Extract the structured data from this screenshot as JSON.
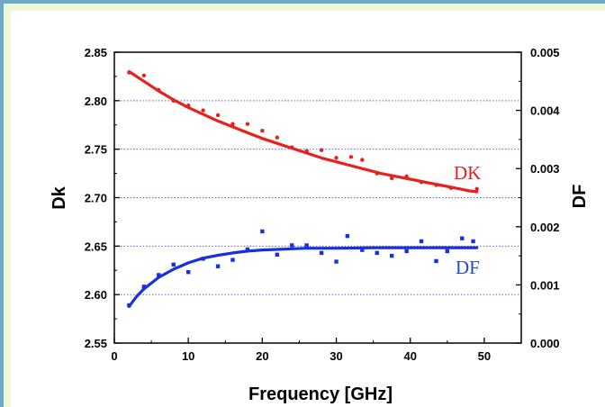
{
  "chart_data": {
    "type": "scatter",
    "xlabel": "Frequency [GHz]",
    "ylabel": "Dk",
    "y2label": "DF",
    "xlim": [
      0,
      55
    ],
    "ylim": [
      2.55,
      2.85
    ],
    "y2lim": [
      0,
      0.005
    ],
    "xticks": [
      "0",
      "10",
      "20",
      "30",
      "40",
      "50"
    ],
    "yticks": [
      "2.55",
      "2.60",
      "2.65",
      "2.70",
      "2.75",
      "2.80",
      "2.85"
    ],
    "y2ticks": [
      "0.000",
      "0.001",
      "0.002",
      "0.003",
      "0.004",
      "0.005"
    ],
    "grid": "horizontal dotted",
    "series": [
      {
        "name": "DK",
        "axis": "left",
        "color": "#e8201e",
        "points": [
          [
            2,
            2.829
          ],
          [
            4,
            2.826
          ],
          [
            6,
            2.811
          ],
          [
            8,
            2.8
          ],
          [
            10,
            2.795
          ],
          [
            12,
            2.79
          ],
          [
            14,
            2.785
          ],
          [
            16,
            2.776
          ],
          [
            18,
            2.776
          ],
          [
            20,
            2.769
          ],
          [
            22,
            2.762
          ],
          [
            24,
            2.752
          ],
          [
            26,
            2.748
          ],
          [
            28,
            2.749
          ],
          [
            30,
            2.741
          ],
          [
            32,
            2.742
          ],
          [
            33.5,
            2.739
          ],
          [
            35.5,
            2.725
          ],
          [
            37.5,
            2.72
          ],
          [
            39.5,
            2.722
          ],
          [
            41.5,
            2.716
          ],
          [
            43.5,
            2.713
          ],
          [
            45.5,
            2.71
          ],
          [
            49,
            2.709
          ]
        ],
        "fit": [
          [
            2,
            2.83
          ],
          [
            4,
            2.82
          ],
          [
            6,
            2.81
          ],
          [
            8,
            2.801
          ],
          [
            10,
            2.793
          ],
          [
            12,
            2.786
          ],
          [
            14,
            2.779
          ],
          [
            16,
            2.773
          ],
          [
            18,
            2.767
          ],
          [
            20,
            2.761
          ],
          [
            22,
            2.756
          ],
          [
            24,
            2.751
          ],
          [
            26,
            2.746
          ],
          [
            28,
            2.741
          ],
          [
            30,
            2.737
          ],
          [
            32,
            2.733
          ],
          [
            34,
            2.729
          ],
          [
            36,
            2.725
          ],
          [
            38,
            2.722
          ],
          [
            40,
            2.719
          ],
          [
            42,
            2.716
          ],
          [
            44,
            2.713
          ],
          [
            46,
            2.71
          ],
          [
            48,
            2.707
          ],
          [
            49,
            2.706
          ]
        ]
      },
      {
        "name": "DF",
        "axis": "right",
        "color": "#1a2fe0",
        "points": [
          [
            2,
            0.00065
          ],
          [
            4,
            0.00097
          ],
          [
            6,
            0.00117
          ],
          [
            8,
            0.00135
          ],
          [
            10,
            0.00122
          ],
          [
            12,
            0.00145
          ],
          [
            14,
            0.00132
          ],
          [
            16,
            0.00143
          ],
          [
            18,
            0.00161
          ],
          [
            20,
            0.00192
          ],
          [
            22,
            0.00152
          ],
          [
            24,
            0.00168
          ],
          [
            26,
            0.00168
          ],
          [
            28,
            0.00155
          ],
          [
            30,
            0.0014
          ],
          [
            31.5,
            0.00184
          ],
          [
            33.5,
            0.0016
          ],
          [
            35.5,
            0.00155
          ],
          [
            37.5,
            0.0015
          ],
          [
            39.5,
            0.00158
          ],
          [
            41.5,
            0.00175
          ],
          [
            43.5,
            0.00141
          ],
          [
            45,
            0.00158
          ],
          [
            47,
            0.0018
          ],
          [
            48.5,
            0.00175
          ]
        ],
        "fit": [
          [
            2,
            0.00063
          ],
          [
            3,
            0.0008
          ],
          [
            4,
            0.00093
          ],
          [
            6,
            0.00113
          ],
          [
            8,
            0.00127
          ],
          [
            10,
            0.00138
          ],
          [
            12,
            0.00146
          ],
          [
            14,
            0.00151
          ],
          [
            16,
            0.00155
          ],
          [
            18,
            0.00158
          ],
          [
            20,
            0.0016
          ],
          [
            22,
            0.00161
          ],
          [
            24,
            0.00162
          ],
          [
            26,
            0.00163
          ],
          [
            28,
            0.00163
          ],
          [
            30,
            0.00163
          ],
          [
            35,
            0.00164
          ],
          [
            40,
            0.00164
          ],
          [
            45,
            0.00164
          ],
          [
            49,
            0.00164
          ]
        ]
      }
    ],
    "annotations": [
      "DK",
      "DF"
    ]
  }
}
